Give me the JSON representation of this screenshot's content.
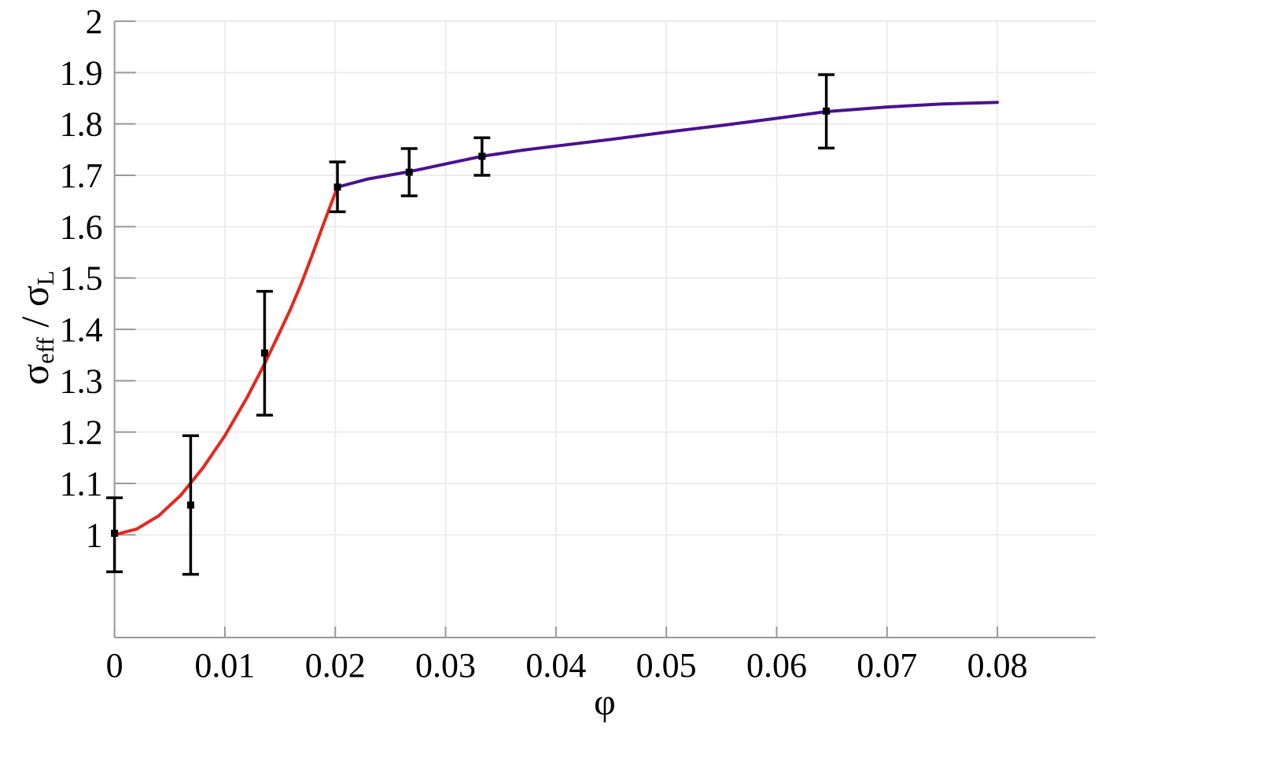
{
  "figure": {
    "background": "#ffffff"
  },
  "chart_data": {
    "type": "line",
    "title": "",
    "xlabel": "φ",
    "ylabel": "σ_eff / σ_L",
    "ylabel_parts": {
      "sym1": "σ",
      "sub1": "eff",
      "sep": " / ",
      "sym2": "σ",
      "sub2": "L"
    },
    "xlim": [
      0,
      0.0889
    ],
    "ylim": [
      0.8,
      2
    ],
    "xticks": [
      0,
      0.01,
      0.02,
      0.03,
      0.04,
      0.05,
      0.06,
      0.07,
      0.08
    ],
    "xtick_labels": [
      "0",
      "0.01",
      "0.02",
      "0.03",
      "0.04",
      "0.05",
      "0.06",
      "0.07",
      "0.08"
    ],
    "yticks": [
      1,
      1.1,
      1.2,
      1.3,
      1.4,
      1.5,
      1.6,
      1.7,
      1.8,
      1.9,
      2
    ],
    "ytick_labels": [
      "1",
      "1.1",
      "1.2",
      "1.3",
      "1.4",
      "1.5",
      "1.6",
      "1.7",
      "1.8",
      "1.9",
      "2"
    ],
    "grid": true,
    "grid_color": "#ececec",
    "axis_color": "#999999",
    "legend": "none",
    "series": [
      {
        "name": "fit-curve-low-phi",
        "color": "#e8261c",
        "width": 4,
        "x": [
          0.0,
          0.002,
          0.004,
          0.006,
          0.008,
          0.01,
          0.012,
          0.0136,
          0.015,
          0.016,
          0.017,
          0.018,
          0.019,
          0.0202
        ],
        "y": [
          1.0,
          1.011,
          1.037,
          1.077,
          1.13,
          1.193,
          1.267,
          1.333,
          1.396,
          1.442,
          1.493,
          1.55,
          1.609,
          1.677
        ]
      },
      {
        "name": "fit-curve-high-phi",
        "color": "#4a1190",
        "width": 4,
        "x": [
          0.0202,
          0.023,
          0.0267,
          0.03,
          0.0333,
          0.037,
          0.04,
          0.045,
          0.05,
          0.055,
          0.06,
          0.0645,
          0.07,
          0.075,
          0.08
        ],
        "y": [
          1.677,
          1.693,
          1.707,
          1.722,
          1.737,
          1.749,
          1.757,
          1.77,
          1.784,
          1.797,
          1.811,
          1.824,
          1.833,
          1.839,
          1.842
        ]
      }
    ],
    "errorbars": {
      "name": "measurement-points",
      "color": "#000000",
      "marker": "square",
      "marker_size": 9,
      "cap_width": 21,
      "line_width": 3.5,
      "points": [
        {
          "x": 0.0,
          "y": 1.003,
          "y_low": 0.928,
          "y_high": 1.072
        },
        {
          "x": 0.0069,
          "y": 1.058,
          "y_low": 0.923,
          "y_high": 1.193
        },
        {
          "x": 0.0136,
          "y": 1.354,
          "y_low": 1.233,
          "y_high": 1.474
        },
        {
          "x": 0.0202,
          "y": 1.677,
          "y_low": 1.629,
          "y_high": 1.726
        },
        {
          "x": 0.0267,
          "y": 1.706,
          "y_low": 1.66,
          "y_high": 1.752
        },
        {
          "x": 0.0333,
          "y": 1.737,
          "y_low": 1.7,
          "y_high": 1.773
        },
        {
          "x": 0.0645,
          "y": 1.825,
          "y_low": 1.753,
          "y_high": 1.896
        }
      ]
    }
  }
}
